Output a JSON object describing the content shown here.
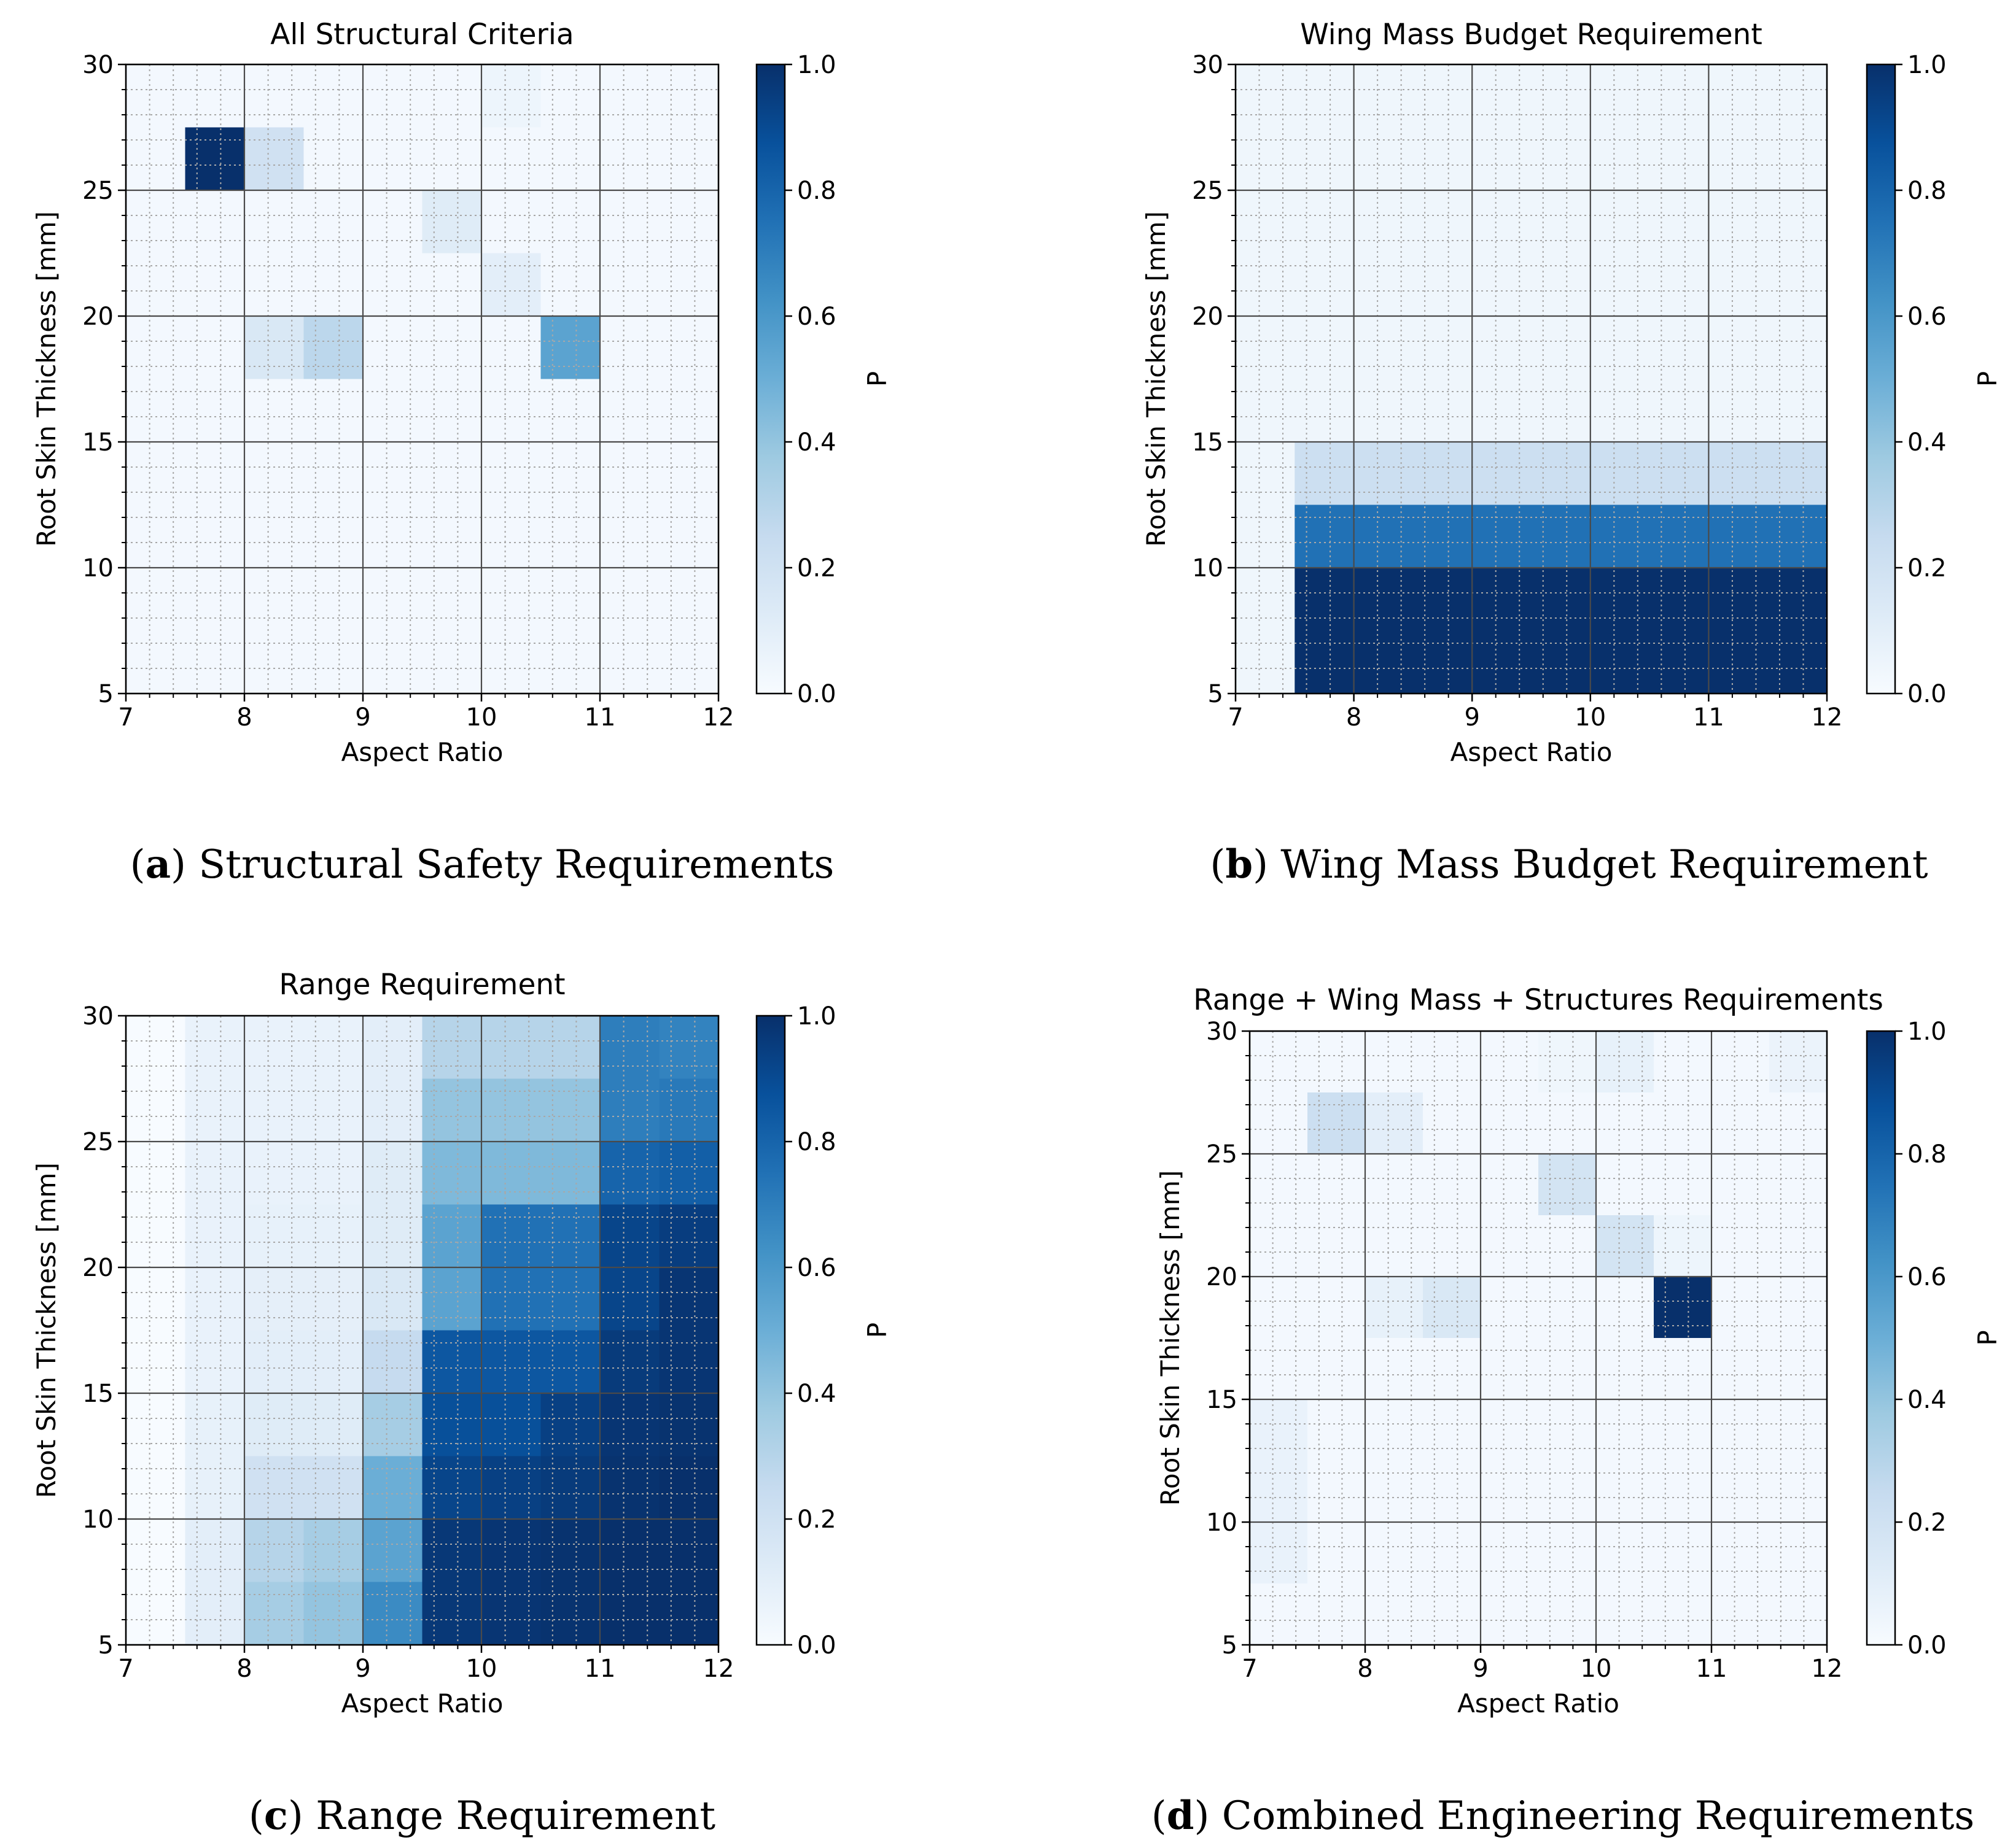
{
  "figure": {
    "panels": [
      {
        "id": "a",
        "caption_letter": "a",
        "caption_text": "Structural Safety Requirements"
      },
      {
        "id": "b",
        "caption_letter": "b",
        "caption_text": "Wing Mass Budget Requirement"
      },
      {
        "id": "c",
        "caption_letter": "c",
        "caption_text": "Range Requirement"
      },
      {
        "id": "d",
        "caption_letter": "d",
        "caption_text": "Combined Engineering Requirements"
      }
    ]
  },
  "colors": {
    "colormap_low": "#f7fbff",
    "colormap_high": "#08306b",
    "grid_major": "#4a4a4a",
    "grid_minor": "#a8a8a8"
  },
  "chart_data": [
    {
      "type": "heatmap",
      "title": "All Structural Criteria",
      "xlabel": "Aspect Ratio",
      "ylabel": "Root Skin Thickness [mm]",
      "colorbar_label": "P",
      "xlim": [
        7,
        12
      ],
      "ylim": [
        5,
        30
      ],
      "xticks": [
        "7",
        "8",
        "9",
        "10",
        "11",
        "12"
      ],
      "yticks": [
        "5",
        "10",
        "15",
        "20",
        "25",
        "30"
      ],
      "colorbar_range": [
        0,
        1
      ],
      "colorbar_ticks": [
        "0.0",
        "0.2",
        "0.4",
        "0.6",
        "0.8",
        "1.0"
      ],
      "x_bin_edges": [
        7,
        7.5,
        8,
        8.5,
        9,
        9.5,
        10,
        10.5,
        11,
        11.5,
        12
      ],
      "y_bin_edges": [
        5,
        7.5,
        10,
        12.5,
        15,
        17.5,
        20,
        22.5,
        25,
        27.5,
        30
      ],
      "background_value": 0.02,
      "cells": [
        {
          "x": [
            7.5,
            8.0
          ],
          "y": [
            25,
            27.5
          ],
          "value": 1.0
        },
        {
          "x": [
            8.0,
            8.5
          ],
          "y": [
            25,
            27.5
          ],
          "value": 0.2
        },
        {
          "x": [
            9.5,
            10.0
          ],
          "y": [
            22.5,
            25
          ],
          "value": 0.12
        },
        {
          "x": [
            10.0,
            10.5
          ],
          "y": [
            20,
            22.5
          ],
          "value": 0.1
        },
        {
          "x": [
            8.0,
            8.5
          ],
          "y": [
            17.5,
            20
          ],
          "value": 0.15
        },
        {
          "x": [
            8.5,
            9.0
          ],
          "y": [
            17.5,
            20
          ],
          "value": 0.28
        },
        {
          "x": [
            10.5,
            11.0
          ],
          "y": [
            17.5,
            20
          ],
          "value": 0.55
        },
        {
          "x": [
            10.0,
            10.5
          ],
          "y": [
            27.5,
            30
          ],
          "value": 0.05
        }
      ]
    },
    {
      "type": "heatmap",
      "title": "Wing Mass Budget Requirement",
      "xlabel": "Aspect Ratio",
      "ylabel": "Root Skin Thickness [mm]",
      "colorbar_label": "P",
      "xlim": [
        7,
        12
      ],
      "ylim": [
        5,
        30
      ],
      "xticks": [
        "7",
        "8",
        "9",
        "10",
        "11",
        "12"
      ],
      "yticks": [
        "5",
        "10",
        "15",
        "20",
        "25",
        "30"
      ],
      "colorbar_range": [
        0,
        1
      ],
      "colorbar_ticks": [
        "0.0",
        "0.2",
        "0.4",
        "0.6",
        "0.8",
        "1.0"
      ],
      "x_bin_edges": [
        7,
        7.5,
        8,
        8.5,
        9,
        9.5,
        10,
        10.5,
        11,
        11.5,
        12
      ],
      "y_bin_edges": [
        5,
        7.5,
        10,
        12.5,
        15,
        17.5,
        20,
        22.5,
        25,
        27.5,
        30
      ],
      "background_value": 0.04,
      "cells": [
        {
          "x": [
            7.5,
            12.0
          ],
          "y": [
            12.5,
            15
          ],
          "value": 0.22
        },
        {
          "x": [
            7.5,
            12.0
          ],
          "y": [
            10,
            12.5
          ],
          "value": 0.75
        },
        {
          "x": [
            7.5,
            12.0
          ],
          "y": [
            5,
            10
          ],
          "value": 1.0
        }
      ]
    },
    {
      "type": "heatmap",
      "title": "Range Requirement",
      "xlabel": "Aspect Ratio",
      "ylabel": "Root Skin Thickness [mm]",
      "colorbar_label": "P",
      "xlim": [
        7,
        12
      ],
      "ylim": [
        5,
        30
      ],
      "xticks": [
        "7",
        "8",
        "9",
        "10",
        "11",
        "12"
      ],
      "yticks": [
        "5",
        "10",
        "15",
        "20",
        "25",
        "30"
      ],
      "colorbar_range": [
        0,
        1
      ],
      "colorbar_ticks": [
        "0.0",
        "0.2",
        "0.4",
        "0.6",
        "0.8",
        "1.0"
      ],
      "x_bin_edges": [
        7,
        7.5,
        8,
        8.5,
        9,
        9.5,
        10,
        10.5,
        11,
        11.5,
        12
      ],
      "y_bin_edges": [
        5,
        7.5,
        10,
        12.5,
        15,
        17.5,
        20,
        22.5,
        25,
        27.5,
        30
      ],
      "grid_values_rows_top_to_bottom": [
        [
          0.0,
          0.07,
          0.07,
          0.07,
          0.1,
          0.3,
          0.3,
          0.3,
          0.7,
          0.68
        ],
        [
          0.0,
          0.07,
          0.07,
          0.07,
          0.1,
          0.4,
          0.4,
          0.4,
          0.7,
          0.72
        ],
        [
          0.0,
          0.07,
          0.07,
          0.07,
          0.12,
          0.45,
          0.45,
          0.45,
          0.8,
          0.82
        ],
        [
          0.0,
          0.07,
          0.08,
          0.08,
          0.12,
          0.55,
          0.75,
          0.75,
          0.92,
          0.95
        ],
        [
          0.0,
          0.07,
          0.09,
          0.09,
          0.15,
          0.55,
          0.75,
          0.75,
          0.92,
          0.98
        ],
        [
          0.0,
          0.07,
          0.1,
          0.1,
          0.25,
          0.85,
          0.85,
          0.85,
          0.96,
          0.98
        ],
        [
          0.0,
          0.08,
          0.12,
          0.12,
          0.35,
          0.88,
          0.88,
          0.94,
          0.98,
          0.99
        ],
        [
          0.0,
          0.08,
          0.2,
          0.2,
          0.5,
          0.92,
          0.94,
          0.96,
          0.99,
          1.0
        ],
        [
          0.0,
          0.1,
          0.3,
          0.35,
          0.55,
          0.97,
          0.98,
          0.99,
          1.0,
          1.0
        ],
        [
          0.0,
          0.1,
          0.35,
          0.4,
          0.65,
          0.97,
          0.98,
          0.99,
          1.0,
          1.0
        ]
      ]
    },
    {
      "type": "heatmap",
      "title": "Range + Wing Mass + Structures Requirements",
      "xlabel": "Aspect Ratio",
      "ylabel": "Root Skin Thickness [mm]",
      "colorbar_label": "P",
      "xlim": [
        7,
        12
      ],
      "ylim": [
        5,
        30
      ],
      "xticks": [
        "7",
        "8",
        "9",
        "10",
        "11",
        "12"
      ],
      "yticks": [
        "5",
        "10",
        "15",
        "20",
        "25",
        "30"
      ],
      "colorbar_range": [
        0,
        1
      ],
      "colorbar_ticks": [
        "0.0",
        "0.2",
        "0.4",
        "0.6",
        "0.8",
        "1.0"
      ],
      "x_bin_edges": [
        7,
        7.5,
        8,
        8.5,
        9,
        9.5,
        10,
        10.5,
        11,
        11.5,
        12
      ],
      "y_bin_edges": [
        5,
        7.5,
        10,
        12.5,
        15,
        17.5,
        20,
        22.5,
        25,
        27.5,
        30
      ],
      "background_value": 0.02,
      "cells": [
        {
          "x": [
            7.5,
            8.0
          ],
          "y": [
            25,
            27.5
          ],
          "value": 0.22
        },
        {
          "x": [
            8.0,
            8.5
          ],
          "y": [
            25,
            27.5
          ],
          "value": 0.1
        },
        {
          "x": [
            9.5,
            10.0
          ],
          "y": [
            22.5,
            25
          ],
          "value": 0.18
        },
        {
          "x": [
            10.0,
            10.5
          ],
          "y": [
            20,
            22.5
          ],
          "value": 0.18
        },
        {
          "x": [
            8.0,
            8.5
          ],
          "y": [
            17.5,
            20
          ],
          "value": 0.08
        },
        {
          "x": [
            8.5,
            9.0
          ],
          "y": [
            17.5,
            20
          ],
          "value": 0.15
        },
        {
          "x": [
            10.5,
            11.0
          ],
          "y": [
            17.5,
            20
          ],
          "value": 1.0
        },
        {
          "x": [
            10.0,
            10.5
          ],
          "y": [
            27.5,
            30
          ],
          "value": 0.08
        },
        {
          "x": [
            11.5,
            12.0
          ],
          "y": [
            27.5,
            30
          ],
          "value": 0.06
        },
        {
          "x": [
            9.5,
            10.0
          ],
          "y": [
            27.5,
            30
          ],
          "value": 0.04
        },
        {
          "x": [
            10.5,
            11.0
          ],
          "y": [
            20,
            22.5
          ],
          "value": 0.05
        },
        {
          "x": [
            7.0,
            7.5
          ],
          "y": [
            7.5,
            15
          ],
          "value": 0.07
        }
      ]
    }
  ]
}
